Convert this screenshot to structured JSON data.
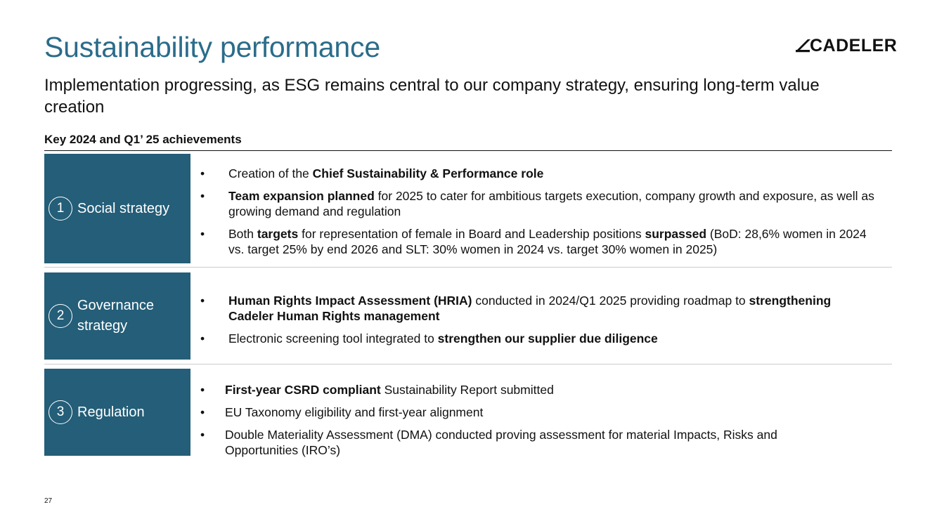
{
  "header": {
    "title": "Sustainability performance",
    "subtitle": "Implementation progressing, as ESG remains central to our company strategy, ensuring long-term value creation",
    "logo_text": "CADELER"
  },
  "section": {
    "heading": "Key 2024 and Q1’ 25 achievements"
  },
  "rows": [
    {
      "number": "1",
      "label": "Social strategy",
      "bullets": [
        [
          {
            "t": "Creation of the "
          },
          {
            "t": "Chief Sustainability & Performance role",
            "b": true
          }
        ],
        [
          {
            "t": "Team expansion planned",
            "b": true
          },
          {
            "t": " for 2025 to cater for ambitious targets execution, company growth and exposure, as well as growing demand and regulation"
          }
        ],
        [
          {
            "t": "Both "
          },
          {
            "t": "targets",
            "b": true
          },
          {
            "t": " for representation of female in Board and Leadership positions "
          },
          {
            "t": "surpassed",
            "b": true
          },
          {
            "t": " (BoD: 28,6% women in 2024 vs. target 25% by end 2026 and SLT: 30% women in 2024 vs. target 30% women in 2025)"
          }
        ]
      ]
    },
    {
      "number": "2",
      "label": "Governance strategy",
      "bullets": [
        [
          {
            "t": "Human Rights Impact Assessment (HRIA)",
            "b": true
          },
          {
            "t": " conducted in 2024/Q1 2025 providing roadmap to "
          },
          {
            "t": "strengthening Cadeler Human Rights management",
            "b": true
          }
        ],
        [
          {
            "t": "Electronic screening tool integrated to "
          },
          {
            "t": "strengthen our supplier due diligence",
            "b": true
          }
        ]
      ]
    },
    {
      "number": "3",
      "label": "Regulation",
      "bullets": [
        [
          {
            "t": "First-year CSRD compliant",
            "b": true
          },
          {
            "t": " Sustainability Report submitted"
          }
        ],
        [
          {
            "t": "EU Taxonomy eligibility and first-year alignment"
          }
        ],
        [
          {
            "t": "Double Materiality Assessment (DMA) conducted proving assessment for material Impacts, Risks and Opportunities (IRO’s)"
          }
        ]
      ]
    }
  ],
  "footer": {
    "page_number": "27"
  },
  "colors": {
    "title": "#2b6c8a",
    "box_fill": "#245e78",
    "separator": "#cccccc"
  }
}
